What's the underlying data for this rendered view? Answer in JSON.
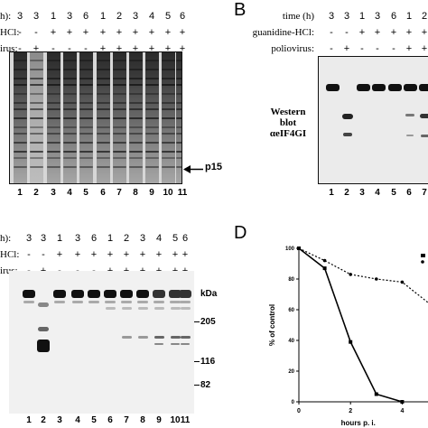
{
  "panelA": {
    "row_labels": [
      "h):",
      "HCl:",
      "irus:"
    ],
    "time": [
      "3",
      "3",
      "1",
      "3",
      "6",
      "1",
      "2",
      "3",
      "4",
      "5",
      "6"
    ],
    "hcl": [
      "-",
      "-",
      "+",
      "+",
      "+",
      "+",
      "+",
      "+",
      "+",
      "+",
      "+"
    ],
    "virus": [
      "-",
      "+",
      "-",
      "-",
      "-",
      "+",
      "+",
      "+",
      "+",
      "+",
      "+"
    ],
    "arrow_label": "p15",
    "lanes": [
      "1",
      "2",
      "3",
      "4",
      "5",
      "6",
      "7",
      "8",
      "9",
      "10",
      "11"
    ]
  },
  "panelB": {
    "letter": "B",
    "row_labels": [
      "time (h)",
      "guanidine-HCl:",
      "poliovirus:"
    ],
    "time": [
      "3",
      "3",
      "1",
      "3",
      "6",
      "1",
      "2"
    ],
    "hcl": [
      "-",
      "-",
      "+",
      "+",
      "+",
      "+",
      "+"
    ],
    "virus": [
      "-",
      "+",
      "-",
      "-",
      "-",
      "+",
      "+"
    ],
    "blot_label": [
      "Western",
      "blot",
      "αeIF4GI"
    ],
    "lanes": [
      "1",
      "2",
      "3",
      "4",
      "5",
      "6",
      "7"
    ]
  },
  "panelC": {
    "row_labels": [
      "h):",
      "HCl:",
      "irus:"
    ],
    "time": [
      "3",
      "3",
      "1",
      "3",
      "6",
      "1",
      "2",
      "3",
      "4",
      "5",
      "6"
    ],
    "hcl": [
      "-",
      "-",
      "+",
      "+",
      "+",
      "+",
      "+",
      "+",
      "+",
      "+",
      "+"
    ],
    "virus": [
      "-",
      "+",
      "-",
      "-",
      "-",
      "+",
      "+",
      "+",
      "+",
      "+",
      "+"
    ],
    "markers": [
      "kDa",
      "205",
      "116",
      "82"
    ],
    "lanes": [
      "1",
      "2",
      "3",
      "4",
      "5",
      "6",
      "7",
      "8",
      "9",
      "10",
      "11"
    ]
  },
  "panelD": {
    "letter": "D"
  },
  "chart_data": {
    "type": "line",
    "xlabel": "hours p. i.",
    "ylabel": "% of control",
    "x_ticks": [
      "0",
      "2",
      "4"
    ],
    "y_ticks": [
      "0",
      "20",
      "40",
      "60",
      "80",
      "100"
    ],
    "xlim": [
      0,
      5.2
    ],
    "ylim": [
      0,
      100
    ],
    "series": [
      {
        "style": "solid",
        "marker": "square",
        "x": [
          0,
          1,
          2,
          3,
          4
        ],
        "y": [
          100,
          87,
          39,
          5,
          0
        ]
      },
      {
        "style": "dotted",
        "marker": "circle",
        "x": [
          0,
          1,
          2,
          3,
          4,
          5.2
        ],
        "y": [
          100,
          92,
          83,
          80,
          78,
          62
        ]
      }
    ]
  }
}
